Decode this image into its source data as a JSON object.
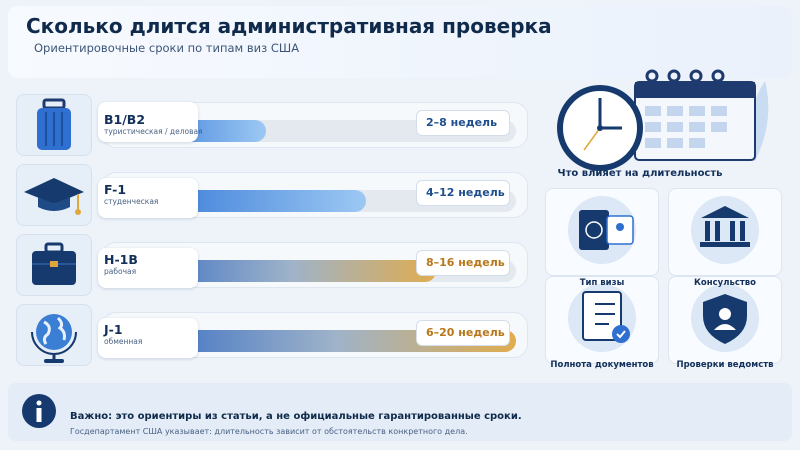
{
  "header": {
    "title": "Сколько длится административная проверка",
    "subtitle": "Ориентировочные сроки по типам виз США"
  },
  "visas": [
    {
      "code": "B1/B2",
      "description": "туристическая / деловая",
      "duration": "2–8 недель"
    },
    {
      "code": "F-1",
      "description": "студенческая",
      "duration": "4–12 недель"
    },
    {
      "code": "H-1B",
      "description": "рабочая",
      "duration": "8–16 недель"
    },
    {
      "code": "J-1",
      "description": "обменная",
      "duration": "6–20 недель"
    }
  ],
  "factors": {
    "title": "Что влияет на длительность",
    "items": [
      "Тип визы",
      "Консульство",
      "Полнота документов",
      "Проверки ведомств"
    ]
  },
  "note": {
    "title": "Важно: это ориентиры из статьи, а не официальные гарантированные сроки.",
    "text": "Госдепартамент США указывает: длительность зависит от обстоятельств конкретного дела."
  }
}
